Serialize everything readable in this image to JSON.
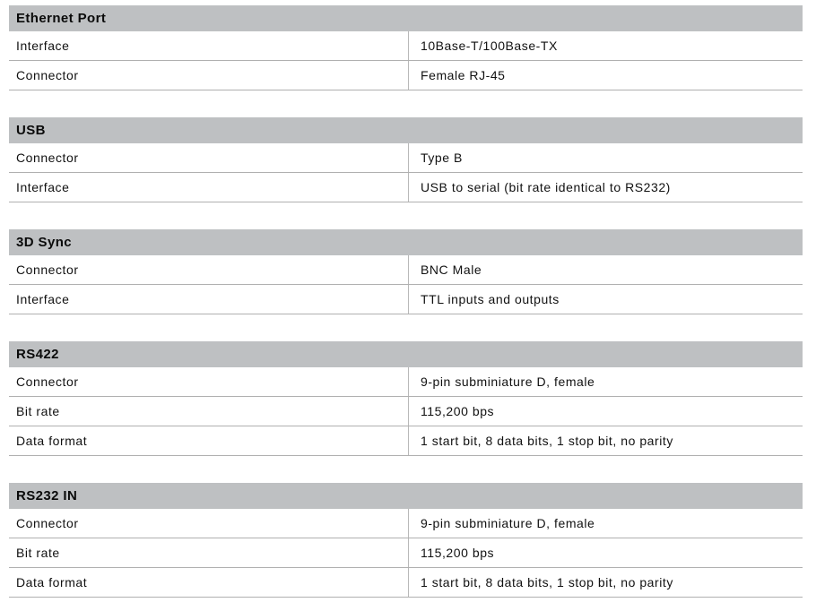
{
  "table": {
    "colors": {
      "header_bg": "#bec0c2",
      "border": "#b0b0b0",
      "divider": "#b8b8b8",
      "text": "#111111"
    },
    "sections": [
      {
        "title": "Ethernet Port",
        "rows": [
          {
            "label": "Interface",
            "value": "10Base-T/100Base-TX"
          },
          {
            "label": "Connector",
            "value": "Female RJ-45"
          }
        ]
      },
      {
        "title": "USB",
        "rows": [
          {
            "label": "Connector",
            "value": "Type B"
          },
          {
            "label": "Interface",
            "value": "USB to serial (bit rate identical to RS232)"
          }
        ]
      },
      {
        "title": "3D Sync",
        "rows": [
          {
            "label": "Connector",
            "value": "BNC Male"
          },
          {
            "label": "Interface",
            "value": "TTL inputs and outputs"
          }
        ]
      },
      {
        "title": "RS422",
        "rows": [
          {
            "label": "Connector",
            "value": "9-pin subminiature D, female"
          },
          {
            "label": "Bit rate",
            "value": "115,200 bps"
          },
          {
            "label": "Data format",
            "value": "1 start bit, 8 data bits, 1 stop bit, no parity"
          }
        ]
      },
      {
        "title": "RS232 IN",
        "rows": [
          {
            "label": "Connector",
            "value": "9-pin subminiature D, female"
          },
          {
            "label": "Bit rate",
            "value": "115,200 bps"
          },
          {
            "label": "Data format",
            "value": "1 start bit, 8 data bits, 1 stop bit, no parity"
          }
        ]
      }
    ]
  }
}
